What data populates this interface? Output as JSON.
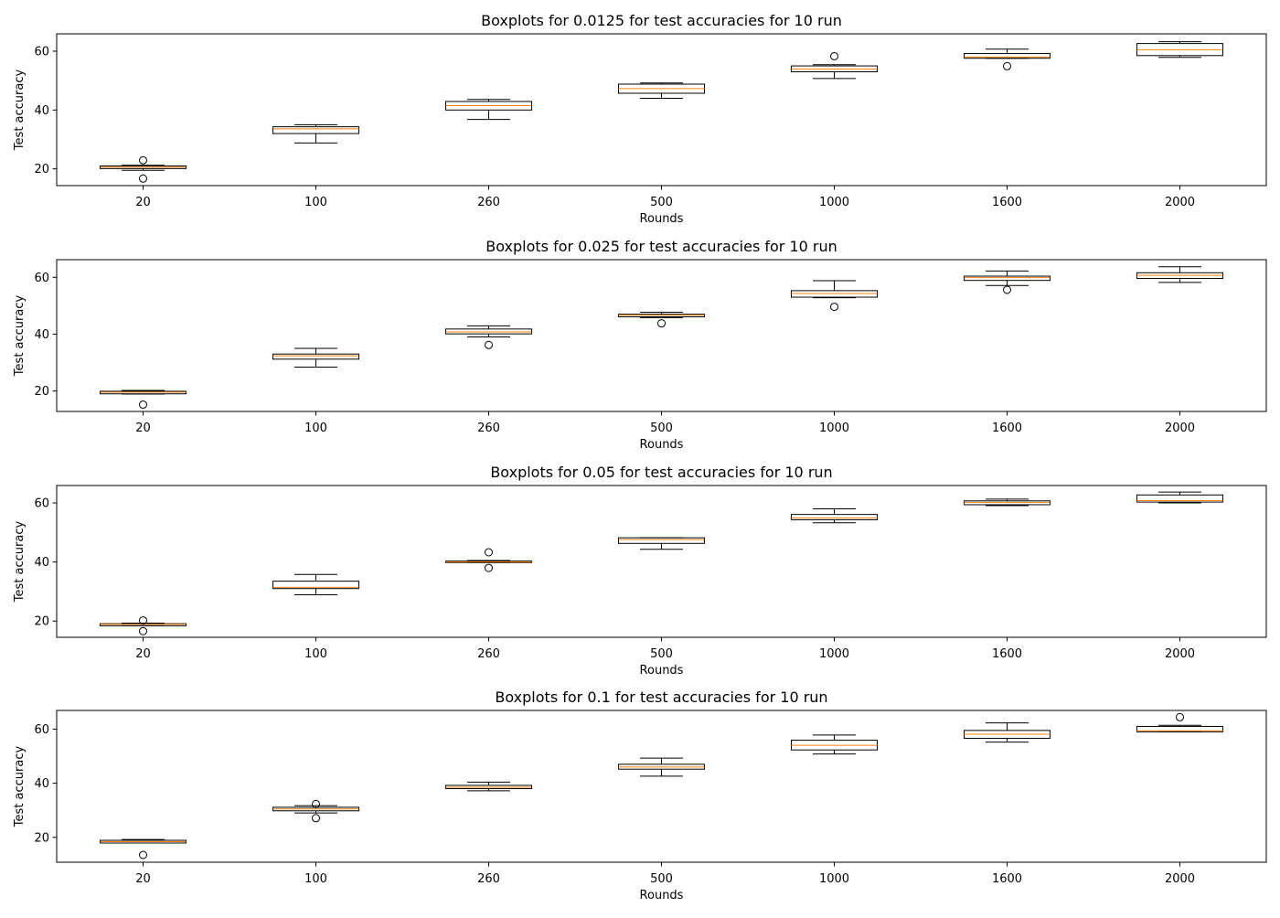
{
  "chart_data": [
    {
      "type": "boxplot",
      "title": "Boxplots for 0.0125 for test accuracies for 10 run",
      "xlabel": "Rounds",
      "ylabel": "Test accuracy",
      "ylim": [
        14.3,
        65.9
      ],
      "yticks": [
        20,
        40,
        60
      ],
      "categories": [
        "20",
        "100",
        "260",
        "500",
        "1000",
        "1600",
        "2000"
      ],
      "boxes": [
        {
          "whislo": 19.5,
          "q1": 20.1,
          "med": 20.6,
          "q3": 21.0,
          "whishi": 21.2,
          "fliers": [
            22.9,
            16.7
          ]
        },
        {
          "whislo": 28.8,
          "q1": 32.0,
          "med": 33.6,
          "q3": 34.3,
          "whishi": 35.0,
          "fliers": []
        },
        {
          "whislo": 36.8,
          "q1": 40.0,
          "med": 41.5,
          "q3": 42.9,
          "whishi": 43.6,
          "fliers": []
        },
        {
          "whislo": 44.0,
          "q1": 45.7,
          "med": 47.3,
          "q3": 48.8,
          "whishi": 49.2,
          "fliers": []
        },
        {
          "whislo": 50.7,
          "q1": 53.0,
          "med": 53.9,
          "q3": 55.0,
          "whishi": 55.4,
          "fliers": [
            58.3
          ]
        },
        {
          "whislo": 57.6,
          "q1": 57.6,
          "med": 58.0,
          "q3": 59.2,
          "whishi": 60.7,
          "fliers": [
            54.9
          ]
        },
        {
          "whislo": 57.9,
          "q1": 58.5,
          "med": 60.5,
          "q3": 62.6,
          "whishi": 63.2,
          "fliers": []
        }
      ]
    },
    {
      "type": "boxplot",
      "title": "Boxplots for 0.025 for test accuracies for 10 run",
      "xlabel": "Rounds",
      "ylabel": "Test accuracy",
      "ylim": [
        12.8,
        66.2
      ],
      "yticks": [
        20,
        40,
        60
      ],
      "categories": [
        "20",
        "100",
        "260",
        "500",
        "1000",
        "1600",
        "2000"
      ],
      "boxes": [
        {
          "whislo": 18.9,
          "q1": 19.0,
          "med": 19.6,
          "q3": 19.9,
          "whishi": 20.2,
          "fliers": [
            15.2
          ]
        },
        {
          "whislo": 28.4,
          "q1": 31.2,
          "med": 32.4,
          "q3": 33.0,
          "whishi": 35.0,
          "fliers": []
        },
        {
          "whislo": 39.0,
          "q1": 40.1,
          "med": 40.8,
          "q3": 41.8,
          "whishi": 42.9,
          "fliers": [
            36.2
          ]
        },
        {
          "whislo": 45.8,
          "q1": 46.1,
          "med": 46.7,
          "q3": 47.0,
          "whishi": 47.7,
          "fliers": [
            43.8
          ]
        },
        {
          "whislo": 52.8,
          "q1": 53.0,
          "med": 54.3,
          "q3": 55.3,
          "whishi": 58.8,
          "fliers": [
            49.6
          ]
        },
        {
          "whislo": 57.1,
          "q1": 58.9,
          "med": 59.9,
          "q3": 60.4,
          "whishi": 62.2,
          "fliers": [
            55.6
          ]
        },
        {
          "whislo": 58.2,
          "q1": 59.6,
          "med": 60.7,
          "q3": 61.6,
          "whishi": 63.7,
          "fliers": []
        }
      ]
    },
    {
      "type": "boxplot",
      "title": "Boxplots for 0.05 for test accuracies for 10 run",
      "xlabel": "Rounds",
      "ylabel": "Test accuracy",
      "ylim": [
        14.5,
        65.9
      ],
      "yticks": [
        20,
        40,
        60
      ],
      "categories": [
        "20",
        "100",
        "260",
        "500",
        "1000",
        "1600",
        "2000"
      ],
      "boxes": [
        {
          "whislo": 18.4,
          "q1": 18.4,
          "med": 18.9,
          "q3": 19.1,
          "whishi": 19.3,
          "fliers": [
            20.2,
            16.6
          ]
        },
        {
          "whislo": 28.9,
          "q1": 31.0,
          "med": 31.4,
          "q3": 33.5,
          "whishi": 35.8,
          "fliers": []
        },
        {
          "whislo": 39.8,
          "q1": 39.8,
          "med": 40.0,
          "q3": 40.3,
          "whishi": 40.5,
          "fliers": [
            43.3,
            38.0
          ]
        },
        {
          "whislo": 44.3,
          "q1": 46.3,
          "med": 47.6,
          "q3": 48.2,
          "whishi": 48.2,
          "fliers": []
        },
        {
          "whislo": 53.3,
          "q1": 54.3,
          "med": 54.9,
          "q3": 56.1,
          "whishi": 58.0,
          "fliers": []
        },
        {
          "whislo": 59.1,
          "q1": 59.4,
          "med": 60.2,
          "q3": 60.7,
          "whishi": 61.3,
          "fliers": []
        },
        {
          "whislo": 60.0,
          "q1": 60.3,
          "med": 60.8,
          "q3": 62.7,
          "whishi": 63.7,
          "fliers": []
        }
      ]
    },
    {
      "type": "boxplot",
      "title": "Boxplots for 0.1 for test accuracies for 10 run",
      "xlabel": "Rounds",
      "ylabel": "Test accuracy",
      "ylim": [
        10.8,
        66.9
      ],
      "yticks": [
        20,
        40,
        60
      ],
      "categories": [
        "20",
        "100",
        "260",
        "500",
        "1000",
        "1600",
        "2000"
      ],
      "boxes": [
        {
          "whislo": 17.9,
          "q1": 17.9,
          "med": 18.4,
          "q3": 18.9,
          "whishi": 19.2,
          "fliers": [
            13.5
          ]
        },
        {
          "whislo": 29.0,
          "q1": 29.8,
          "med": 30.5,
          "q3": 31.1,
          "whishi": 31.7,
          "fliers": [
            32.3,
            27.1
          ]
        },
        {
          "whislo": 37.2,
          "q1": 38.0,
          "med": 38.5,
          "q3": 39.2,
          "whishi": 40.4,
          "fliers": []
        },
        {
          "whislo": 42.6,
          "q1": 45.2,
          "med": 46.0,
          "q3": 47.0,
          "whishi": 49.3,
          "fliers": []
        },
        {
          "whislo": 50.8,
          "q1": 52.3,
          "med": 54.0,
          "q3": 55.9,
          "whishi": 57.8,
          "fliers": []
        },
        {
          "whislo": 55.2,
          "q1": 56.6,
          "med": 58.1,
          "q3": 59.5,
          "whishi": 62.3,
          "fliers": []
        },
        {
          "whislo": 59.0,
          "q1": 59.0,
          "med": 59.4,
          "q3": 61.0,
          "whishi": 61.4,
          "fliers": [
            64.4
          ]
        }
      ]
    }
  ],
  "colors": {
    "box": "#000000",
    "median": "#ff7f0e",
    "background": "#ffffff"
  }
}
